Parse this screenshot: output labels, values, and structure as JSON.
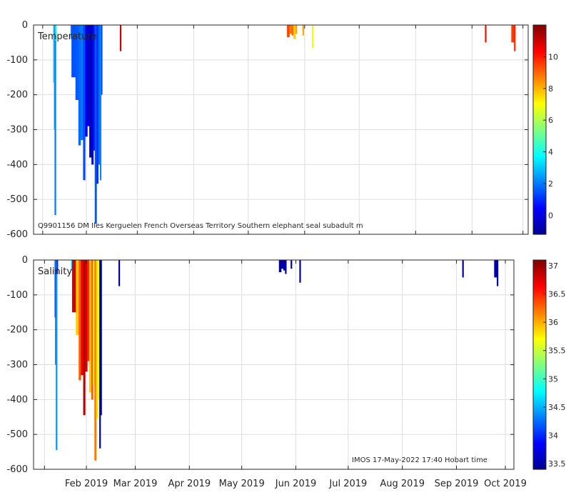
{
  "chart_data": [
    {
      "type": "heatmap",
      "title": "Temperature",
      "ylim": [
        -600,
        0
      ],
      "yticks": [
        0,
        -100,
        -200,
        -300,
        -400,
        -500,
        -600
      ],
      "ytick_labels": [
        "0",
        "-100",
        "-200",
        "-300",
        "-400",
        "-500",
        "-600"
      ],
      "grid": true,
      "annotation": "Q9901156 DM Iles Kerguelen French Overseas Territory Southern elephant seal subadult m",
      "colorbar": {
        "min": -1.2,
        "max": 12,
        "ticks": [
          0,
          2,
          4,
          6,
          8,
          10
        ],
        "tick_labels": [
          "0",
          "2",
          "4",
          "6",
          "8",
          "10"
        ]
      },
      "profiles": [
        {
          "day": 0.0,
          "depth": 165,
          "value": 2.6
        },
        {
          "day": 0.3,
          "depth": 300,
          "value": 3.2
        },
        {
          "day": 0.7,
          "depth": 545,
          "value": 2.0
        },
        {
          "day": 1.1,
          "depth": 45,
          "value": 4.6
        },
        {
          "day": 9.5,
          "depth": 40,
          "value": 2.2
        },
        {
          "day": 10.0,
          "depth": 150,
          "value": 1.5
        },
        {
          "day": 12.2,
          "depth": 215,
          "value": 1.6
        },
        {
          "day": 13.8,
          "depth": 345,
          "value": 1.8
        },
        {
          "day": 15.0,
          "depth": 330,
          "value": 2.0
        },
        {
          "day": 16.4,
          "depth": 445,
          "value": 1.4
        },
        {
          "day": 17.5,
          "depth": 320,
          "value": 0.3
        },
        {
          "day": 18.7,
          "depth": 290,
          "value": -0.2
        },
        {
          "day": 19.8,
          "depth": 380,
          "value": -0.6
        },
        {
          "day": 21.0,
          "depth": 400,
          "value": -0.1
        },
        {
          "day": 22.0,
          "depth": 360,
          "value": 0.8
        },
        {
          "day": 22.8,
          "depth": 570,
          "value": 1.6
        },
        {
          "day": 23.8,
          "depth": 455,
          "value": 1.0
        },
        {
          "day": 24.7,
          "depth": 400,
          "value": 1.8
        },
        {
          "day": 25.6,
          "depth": 445,
          "value": 2.2
        },
        {
          "day": 26.2,
          "depth": 200,
          "value": 1.5
        },
        {
          "day": 36.6,
          "depth": 75,
          "value": 11.0
        },
        {
          "day": 128.5,
          "depth": 35,
          "value": 9.5
        },
        {
          "day": 129.8,
          "depth": 25,
          "value": 8.8
        },
        {
          "day": 131.0,
          "depth": 30,
          "value": 9.0
        },
        {
          "day": 132.0,
          "depth": 40,
          "value": 7.6
        },
        {
          "day": 133.2,
          "depth": 25,
          "value": 8.3
        },
        {
          "day": 137.0,
          "depth": 30,
          "value": 8.2
        },
        {
          "day": 142.2,
          "depth": 65,
          "value": 7.0
        },
        {
          "day": 237.3,
          "depth": 50,
          "value": 10.2
        },
        {
          "day": 251.8,
          "depth": 50,
          "value": 9.6
        },
        {
          "day": 253.3,
          "depth": 75,
          "value": 9.9
        }
      ]
    },
    {
      "type": "heatmap",
      "title": "Salinity",
      "ylim": [
        -600,
        0
      ],
      "yticks": [
        0,
        -100,
        -200,
        -300,
        -400,
        -500,
        -600
      ],
      "ytick_labels": [
        "0",
        "-100",
        "-200",
        "-300",
        "-400",
        "-500",
        "-600"
      ],
      "grid": true,
      "annotation": "IMOS 17-May-2022 17:40 Hobart time",
      "colorbar": {
        "min": 33.4,
        "max": 37.1,
        "ticks": [
          33.5,
          34,
          34.5,
          35,
          35.5,
          36,
          36.5,
          37
        ],
        "tick_labels": [
          "33.5",
          "34",
          "34.5",
          "35",
          "35.5",
          "36",
          "36.5",
          "37"
        ]
      },
      "profiles": [
        {
          "day": 0.0,
          "depth": 165,
          "value": 34.1
        },
        {
          "day": 0.3,
          "depth": 300,
          "value": 34.2
        },
        {
          "day": 0.7,
          "depth": 545,
          "value": 34.4
        },
        {
          "day": 1.1,
          "depth": 40,
          "value": 34.0
        },
        {
          "day": 9.5,
          "depth": 30,
          "value": 34.6
        },
        {
          "day": 10.0,
          "depth": 150,
          "value": 36.8
        },
        {
          "day": 12.2,
          "depth": 215,
          "value": 35.9
        },
        {
          "day": 13.8,
          "depth": 345,
          "value": 36.3
        },
        {
          "day": 15.0,
          "depth": 330,
          "value": 36.7
        },
        {
          "day": 16.4,
          "depth": 445,
          "value": 36.9
        },
        {
          "day": 17.5,
          "depth": 320,
          "value": 36.8
        },
        {
          "day": 18.7,
          "depth": 290,
          "value": 36.5
        },
        {
          "day": 19.8,
          "depth": 380,
          "value": 35.9
        },
        {
          "day": 21.0,
          "depth": 400,
          "value": 36.3
        },
        {
          "day": 22.0,
          "depth": 360,
          "value": 35.6
        },
        {
          "day": 22.8,
          "depth": 575,
          "value": 36.2
        },
        {
          "day": 23.8,
          "depth": 455,
          "value": 35.8
        },
        {
          "day": 24.7,
          "depth": 400,
          "value": 35.6
        },
        {
          "day": 25.6,
          "depth": 540,
          "value": 33.5
        },
        {
          "day": 26.2,
          "depth": 445,
          "value": 33.5
        },
        {
          "day": 36.6,
          "depth": 75,
          "value": 33.5
        },
        {
          "day": 128.5,
          "depth": 35,
          "value": 33.5
        },
        {
          "day": 129.8,
          "depth": 25,
          "value": 33.5
        },
        {
          "day": 131.0,
          "depth": 30,
          "value": 33.5
        },
        {
          "day": 132.0,
          "depth": 40,
          "value": 33.5
        },
        {
          "day": 135.2,
          "depth": 25,
          "value": 33.5
        },
        {
          "day": 140.2,
          "depth": 65,
          "value": 33.5
        },
        {
          "day": 233.5,
          "depth": 50,
          "value": 33.5
        },
        {
          "day": 251.8,
          "depth": 50,
          "value": 33.5
        },
        {
          "day": 253.3,
          "depth": 75,
          "value": 33.5
        }
      ]
    }
  ],
  "xaxis": {
    "tick_days": [
      -6,
      18,
      46,
      77,
      107,
      138,
      168,
      199,
      230,
      258
    ],
    "tick_labels": [
      "",
      "Feb 2019",
      "Mar 2019",
      "Apr 2019",
      "May 2019",
      "Jun 2019",
      "Jul 2019",
      "Aug 2019",
      "Sep 2019",
      "Oct 2019"
    ],
    "day_min": -6,
    "day_max": 263
  },
  "colormap": [
    "#00008f",
    "#0000ff",
    "#0080ff",
    "#00ffff",
    "#80ff80",
    "#ffff00",
    "#ff8000",
    "#ff0000",
    "#800000"
  ]
}
